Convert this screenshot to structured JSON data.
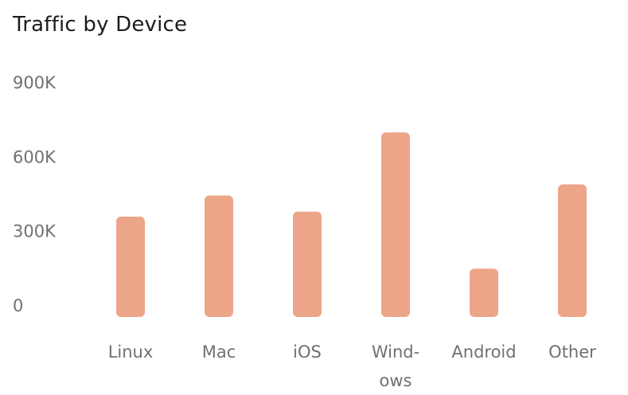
{
  "chart_data": {
    "type": "bar",
    "title": "Traffic by Device",
    "xlabel": "",
    "ylabel": "",
    "categories": [
      "Linux",
      "Mac",
      "iOS",
      "Windows",
      "Android",
      "Other"
    ],
    "category_tick_lines": [
      [
        "Linux"
      ],
      [
        "Mac"
      ],
      [
        "iOS"
      ],
      [
        "Wind-",
        "ows"
      ],
      [
        "Android"
      ],
      [
        "Other"
      ]
    ],
    "values": [
      360000,
      445000,
      380000,
      700000,
      150000,
      490000
    ],
    "ylim": [
      0,
      900000
    ],
    "yticks": [
      0,
      300000,
      600000,
      900000
    ],
    "ytick_labels": [
      "0",
      "300K",
      "600K",
      "900K"
    ],
    "grid": false,
    "bar_color": "#eca588"
  }
}
